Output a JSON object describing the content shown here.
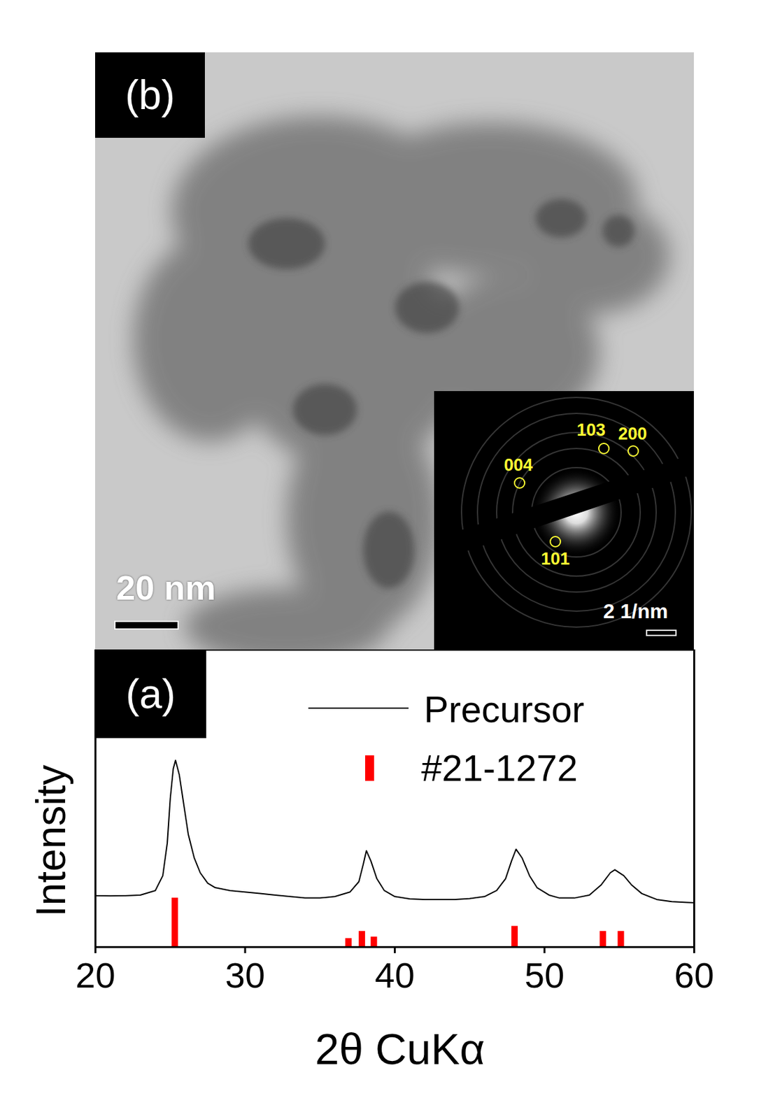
{
  "chart_data": {
    "type": "line",
    "annotations": [
      "(a)"
    ],
    "x_label": "2θ CuKα",
    "y_label": "Intensity",
    "xlim": [
      20,
      60
    ],
    "ylim": [
      0,
      100
    ],
    "xticks": [
      20,
      30,
      40,
      50,
      60
    ],
    "tick_labels": "x",
    "legend": "top-right",
    "series": [
      {
        "name": "Precursor",
        "type": "line",
        "color": "#000000",
        "x": [
          20,
          21,
          22,
          23,
          24,
          24.5,
          24.8,
          25.0,
          25.2,
          25.35,
          25.6,
          25.9,
          26.2,
          26.6,
          27,
          27.5,
          28,
          29,
          30,
          31,
          32,
          33,
          34,
          35,
          36,
          37,
          37.6,
          37.9,
          38.1,
          38.4,
          38.8,
          39.3,
          40,
          41,
          42,
          43,
          44,
          45,
          46,
          46.8,
          47.4,
          47.8,
          48.1,
          48.5,
          49,
          49.5,
          50.3,
          51,
          52,
          53,
          53.8,
          54.4,
          54.7,
          55.3,
          55.8,
          56.5,
          57.5,
          58.5,
          59.5,
          60
        ],
        "values": [
          17.3,
          17.2,
          17.3,
          17.5,
          19,
          24,
          35,
          50,
          60,
          62.8,
          58,
          48,
          38,
          30,
          25,
          21.5,
          20,
          19,
          18.5,
          18,
          17.5,
          17,
          16.5,
          16.5,
          17,
          18.5,
          22,
          28,
          32.4,
          29,
          23,
          19,
          17,
          16.2,
          16,
          16,
          16,
          16.3,
          17,
          19,
          23,
          29,
          32.9,
          30,
          24,
          20,
          17.5,
          16.5,
          16.5,
          17.5,
          21,
          25,
          26,
          24,
          21,
          18,
          16,
          15.3,
          15,
          14.9
        ]
      },
      {
        "name": "#21-1272",
        "type": "bar",
        "color": "#ff0000",
        "x": [
          25.3,
          36.9,
          37.8,
          38.6,
          48.0,
          53.9,
          55.1
        ],
        "values": [
          16.5,
          2.9,
          5.3,
          3.4,
          7,
          5.3,
          5.3
        ]
      }
    ]
  },
  "image_panel": {
    "label": "(b)",
    "scale_bar": "20 nm",
    "inset": {
      "scale_bar": "2 1/nm",
      "spots": [
        "103",
        "200",
        "004",
        "101"
      ]
    }
  }
}
